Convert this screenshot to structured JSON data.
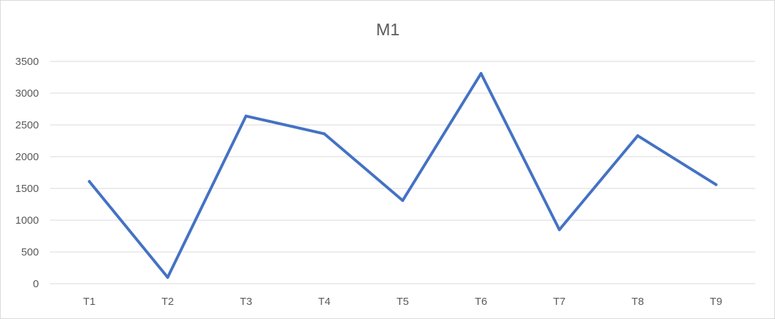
{
  "chart_data": {
    "type": "line",
    "title": "M1",
    "xlabel": "",
    "ylabel": "",
    "categories": [
      "T1",
      "T2",
      "T3",
      "T4",
      "T5",
      "T6",
      "T7",
      "T8",
      "T9"
    ],
    "series": [
      {
        "values": [
          1610,
          100,
          2640,
          2360,
          1310,
          3310,
          850,
          2330,
          1560
        ]
      }
    ],
    "ylim": [
      0,
      3500
    ],
    "yticks": [
      0,
      500,
      1000,
      1500,
      2000,
      2500,
      3000,
      3500
    ],
    "grid": true,
    "legend": "none",
    "colors": {
      "line": "#4472c4",
      "grid": "#d9d9d9",
      "text": "#595959"
    }
  }
}
